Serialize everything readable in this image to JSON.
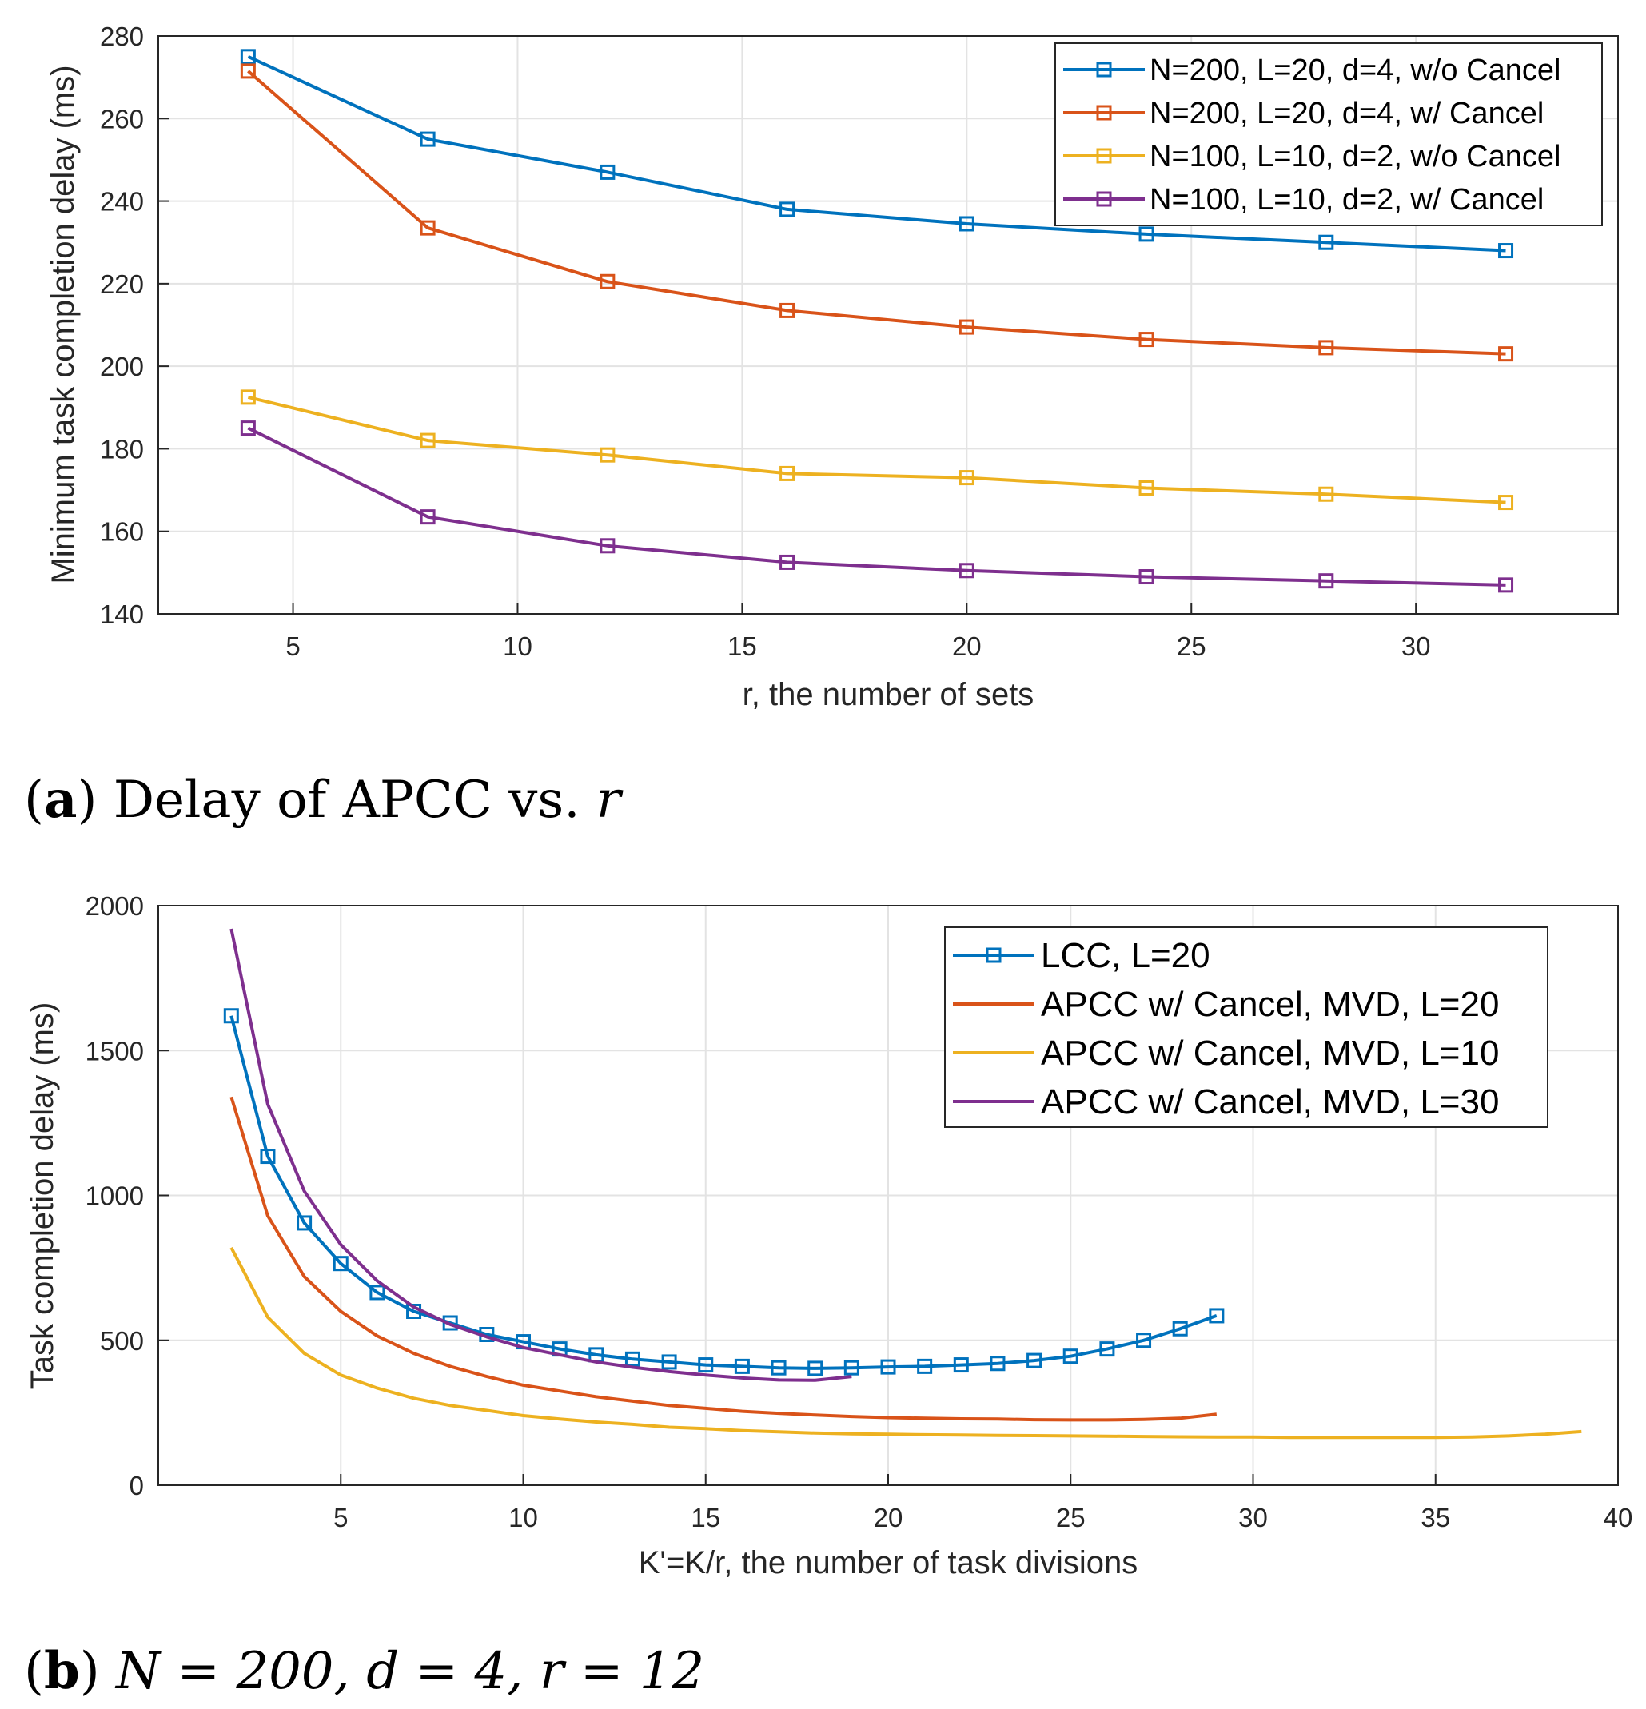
{
  "chart_data": [
    {
      "type": "line",
      "xlabel": "r, the number of sets",
      "ylabel": "Minimum task completion delay (ms)",
      "xlim": [
        2,
        34.5
      ],
      "ylim": [
        140,
        280
      ],
      "xticks": [
        5,
        10,
        15,
        20,
        25,
        30
      ],
      "yticks": [
        140,
        160,
        180,
        200,
        220,
        240,
        260,
        280
      ],
      "grid": true,
      "legend_position": "top-right",
      "x": [
        4,
        8,
        12,
        16,
        20,
        24,
        28,
        32
      ],
      "series": [
        {
          "name": "N=200, L=20, d=4, w/o Cancel",
          "color": "#0072BD",
          "marker": "square",
          "values": [
            275,
            255,
            247,
            238,
            234.5,
            232,
            230,
            228
          ]
        },
        {
          "name": "N=200, L=20, d=4, w/ Cancel",
          "color": "#D95319",
          "marker": "square",
          "values": [
            271.5,
            233.5,
            220.5,
            213.5,
            209.5,
            206.5,
            204.5,
            203
          ]
        },
        {
          "name": "N=100, L=10, d=2, w/o Cancel",
          "color": "#EDB120",
          "marker": "square",
          "values": [
            192.5,
            182,
            178.5,
            174,
            173,
            170.5,
            169,
            167
          ]
        },
        {
          "name": "N=100, L=10, d=2, w/ Cancel",
          "color": "#7E2F8E",
          "marker": "square",
          "values": [
            185,
            163.5,
            156.5,
            152.5,
            150.5,
            149,
            148,
            147
          ]
        }
      ],
      "caption": {
        "label": "a",
        "text": "Delay of APCC vs.",
        "variable": "r"
      }
    },
    {
      "type": "line",
      "xlabel": "K'=K/r, the number of task divisions",
      "ylabel": "Task completion delay (ms)",
      "xlim": [
        0,
        40
      ],
      "ylim": [
        0,
        2000
      ],
      "xticks": [
        5,
        10,
        15,
        20,
        25,
        30,
        35,
        40
      ],
      "yticks": [
        0,
        500,
        1000,
        1500,
        2000
      ],
      "grid": true,
      "legend_position": "top-right",
      "series": [
        {
          "name": "LCC, L=20",
          "color": "#0072BD",
          "marker": "square",
          "x": [
            2,
            3,
            4,
            5,
            6,
            7,
            8,
            9,
            10,
            11,
            12,
            13,
            14,
            15,
            16,
            17,
            18,
            19,
            20,
            21,
            22,
            23,
            24,
            25,
            26,
            27,
            28,
            29
          ],
          "values": [
            1620,
            1135,
            905,
            765,
            665,
            600,
            560,
            520,
            495,
            470,
            450,
            435,
            425,
            415,
            410,
            405,
            403,
            405,
            408,
            410,
            415,
            420,
            430,
            445,
            470,
            500,
            540,
            585
          ]
        },
        {
          "name": "APCC w/ Cancel, MVD, L=20",
          "color": "#D95319",
          "marker": "none",
          "x": [
            2,
            3,
            4,
            5,
            6,
            7,
            8,
            9,
            10,
            11,
            12,
            13,
            14,
            15,
            16,
            17,
            18,
            19,
            20,
            21,
            22,
            23,
            24,
            25,
            26,
            27,
            28,
            29
          ],
          "values": [
            1340,
            930,
            720,
            600,
            515,
            455,
            410,
            375,
            345,
            325,
            305,
            290,
            275,
            265,
            255,
            248,
            242,
            237,
            233,
            231,
            229,
            228,
            226,
            225,
            225,
            227,
            231,
            245
          ]
        },
        {
          "name": "APCC w/ Cancel, MVD, L=10",
          "color": "#EDB120",
          "marker": "none",
          "x": [
            2,
            3,
            4,
            5,
            6,
            7,
            8,
            9,
            10,
            11,
            12,
            13,
            14,
            15,
            16,
            17,
            18,
            19,
            20,
            21,
            22,
            23,
            24,
            25,
            26,
            27,
            28,
            29,
            30,
            31,
            32,
            33,
            34,
            35,
            36,
            37,
            38,
            39
          ],
          "values": [
            820,
            580,
            455,
            380,
            335,
            300,
            275,
            258,
            240,
            228,
            218,
            210,
            200,
            195,
            188,
            184,
            180,
            177,
            176,
            174,
            173,
            172,
            171,
            170,
            169,
            168,
            167,
            166,
            166,
            165,
            165,
            165,
            165,
            165,
            166,
            170,
            176,
            185
          ]
        },
        {
          "name": "APCC w/ Cancel, MVD, L=30",
          "color": "#7E2F8E",
          "marker": "none",
          "x": [
            2,
            3,
            4,
            5,
            6,
            7,
            8,
            9,
            10,
            11,
            12,
            13,
            14,
            15,
            16,
            17,
            18,
            19
          ],
          "values": [
            1920,
            1315,
            1015,
            830,
            705,
            615,
            555,
            512,
            475,
            450,
            425,
            407,
            392,
            380,
            370,
            363,
            362,
            375
          ]
        }
      ],
      "caption": {
        "label": "b",
        "expr": "N = 200, d = 4, r = 12"
      }
    }
  ]
}
